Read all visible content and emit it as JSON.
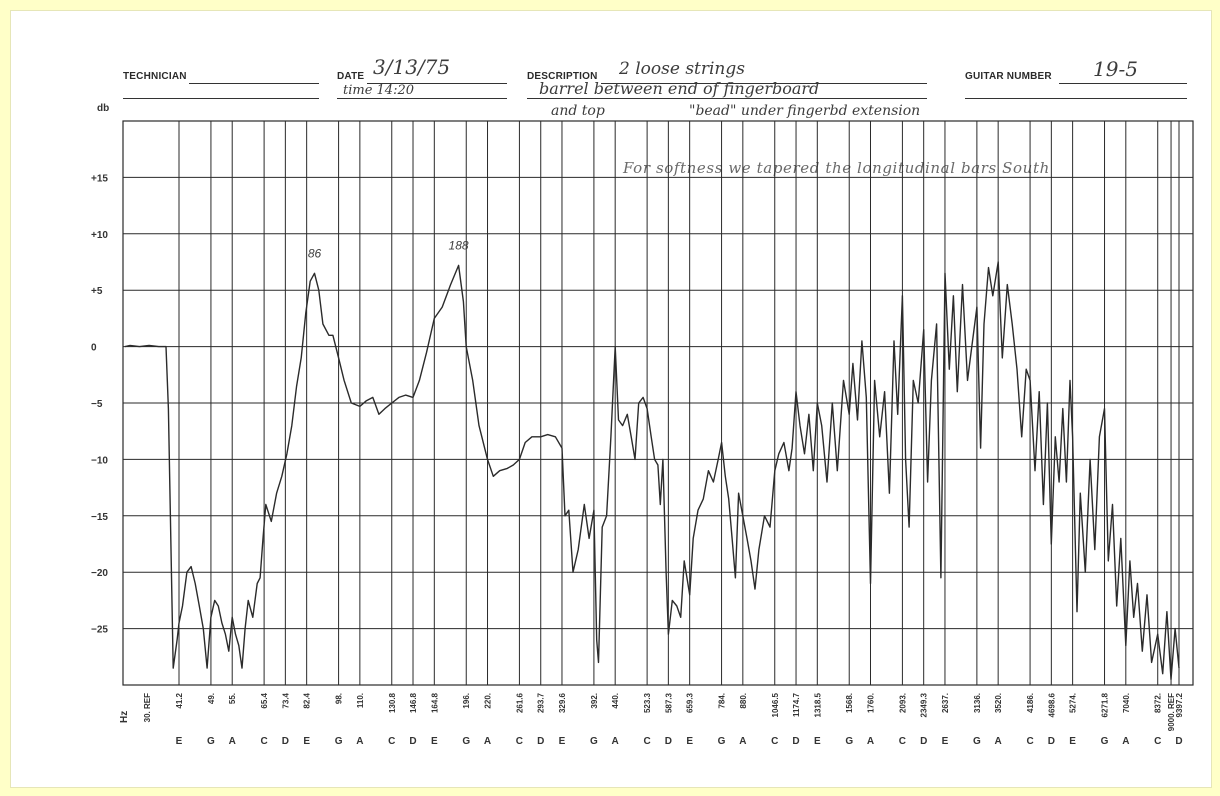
{
  "header": {
    "technician_label": "TECHNICIAN",
    "date_label": "DATE",
    "date_value": "3/13/75",
    "time_value": "time 14:20",
    "description_label": "DESCRIPTION",
    "description_line1": "2 loose strings",
    "description_line2": "barrel between end of fingerboard",
    "description_line3": "and top",
    "description_line3b": "\"bead\" under fingerbd extension",
    "guitar_number_label": "GUITAR NUMBER",
    "guitar_number_value": "19-5"
  },
  "annotation_note": "For softness we tapered the longitudinal bars South",
  "colors": {
    "background": "#ffffc8",
    "grid": "#2a2a2a",
    "trace": "#2b2b2b",
    "handwriting": "#3c3c3c"
  },
  "chart_data": {
    "type": "line",
    "ylabel": "db",
    "xlabel": "Hz",
    "ylim": [
      -30,
      20
    ],
    "y_ticks": [
      15,
      10,
      5,
      0,
      -5,
      -10,
      -15,
      -20,
      -25
    ],
    "y_tick_labels": [
      "+15",
      "+10",
      "+5",
      "0",
      "−5",
      "−10",
      "−15",
      "−20",
      "−25"
    ],
    "x_scale": "log",
    "x_ticks": [
      {
        "hz": 30,
        "freq": "30. REF",
        "note": ""
      },
      {
        "hz": 41.2,
        "freq": "41.2",
        "note": "E"
      },
      {
        "hz": 49,
        "freq": "49.",
        "note": "G"
      },
      {
        "hz": 55,
        "freq": "55.",
        "note": "A"
      },
      {
        "hz": 65.4,
        "freq": "65.4",
        "note": "C"
      },
      {
        "hz": 73.4,
        "freq": "73.4",
        "note": "D"
      },
      {
        "hz": 82.4,
        "freq": "82.4",
        "note": "E"
      },
      {
        "hz": 98,
        "freq": "98.",
        "note": "G"
      },
      {
        "hz": 110,
        "freq": "110.",
        "note": "A"
      },
      {
        "hz": 130.8,
        "freq": "130.8",
        "note": "C"
      },
      {
        "hz": 146.8,
        "freq": "146.8",
        "note": "D"
      },
      {
        "hz": 164.8,
        "freq": "164.8",
        "note": "E"
      },
      {
        "hz": 196,
        "freq": "196.",
        "note": "G"
      },
      {
        "hz": 220,
        "freq": "220.",
        "note": "A"
      },
      {
        "hz": 261.6,
        "freq": "261.6",
        "note": "C"
      },
      {
        "hz": 293.7,
        "freq": "293.7",
        "note": "D"
      },
      {
        "hz": 329.6,
        "freq": "329.6",
        "note": "E"
      },
      {
        "hz": 392,
        "freq": "392.",
        "note": "G"
      },
      {
        "hz": 440,
        "freq": "440.",
        "note": "A"
      },
      {
        "hz": 523.3,
        "freq": "523.3",
        "note": "C"
      },
      {
        "hz": 587.3,
        "freq": "587.3",
        "note": "D"
      },
      {
        "hz": 659.3,
        "freq": "659.3",
        "note": "E"
      },
      {
        "hz": 784,
        "freq": "784.",
        "note": "G"
      },
      {
        "hz": 880,
        "freq": "880.",
        "note": "A"
      },
      {
        "hz": 1046.5,
        "freq": "1046.5",
        "note": "C"
      },
      {
        "hz": 1174.7,
        "freq": "1174.7",
        "note": "D"
      },
      {
        "hz": 1318.5,
        "freq": "1318.5",
        "note": "E"
      },
      {
        "hz": 1568,
        "freq": "1568.",
        "note": "G"
      },
      {
        "hz": 1760,
        "freq": "1760.",
        "note": "A"
      },
      {
        "hz": 2093,
        "freq": "2093.",
        "note": "C"
      },
      {
        "hz": 2349.3,
        "freq": "2349.3",
        "note": "D"
      },
      {
        "hz": 2637,
        "freq": "2637.",
        "note": "E"
      },
      {
        "hz": 3136,
        "freq": "3136.",
        "note": "G"
      },
      {
        "hz": 3520,
        "freq": "3520.",
        "note": "A"
      },
      {
        "hz": 4186,
        "freq": "4186.",
        "note": "C"
      },
      {
        "hz": 4698.6,
        "freq": "4698.6",
        "note": "D"
      },
      {
        "hz": 5274,
        "freq": "5274.",
        "note": "E"
      },
      {
        "hz": 6271.8,
        "freq": "6271.8",
        "note": "G"
      },
      {
        "hz": 7040,
        "freq": "7040.",
        "note": "A"
      },
      {
        "hz": 8372,
        "freq": "8372.",
        "note": "C"
      },
      {
        "hz": 9000,
        "freq": "9000. REF",
        "note": ""
      },
      {
        "hz": 9397.2,
        "freq": "9397.2",
        "note": "D"
      }
    ],
    "peak_labels": [
      {
        "hz": 86,
        "db": 6.5,
        "text": "86"
      },
      {
        "hz": 188,
        "db": 7.2,
        "text": "188"
      }
    ],
    "series": [
      {
        "points": [
          [
            30,
            0
          ],
          [
            31,
            0.1
          ],
          [
            33,
            0
          ],
          [
            35,
            0.1
          ],
          [
            37,
            0
          ],
          [
            38.5,
            0
          ],
          [
            39,
            -5.5
          ],
          [
            40,
            -28.5
          ],
          [
            40.8,
            -26
          ],
          [
            41.2,
            -24.5
          ],
          [
            42,
            -23
          ],
          [
            43,
            -20
          ],
          [
            44,
            -19.5
          ],
          [
            45,
            -21
          ],
          [
            46,
            -23
          ],
          [
            47,
            -25
          ],
          [
            48,
            -28.5
          ],
          [
            49,
            -24
          ],
          [
            50,
            -22.5
          ],
          [
            51,
            -23
          ],
          [
            52,
            -24.5
          ],
          [
            53,
            -25.5
          ],
          [
            54,
            -27
          ],
          [
            55,
            -24
          ],
          [
            56,
            -25.5
          ],
          [
            57,
            -26.5
          ],
          [
            58,
            -28.5
          ],
          [
            59,
            -25
          ],
          [
            60,
            -22.5
          ],
          [
            61.5,
            -24
          ],
          [
            63,
            -21
          ],
          [
            64,
            -20.5
          ],
          [
            65,
            -17
          ],
          [
            66,
            -14
          ],
          [
            68,
            -15.5
          ],
          [
            70,
            -13
          ],
          [
            72,
            -11.5
          ],
          [
            74,
            -9.5
          ],
          [
            76,
            -7
          ],
          [
            78,
            -3.5
          ],
          [
            80,
            -1
          ],
          [
            82,
            3
          ],
          [
            84,
            5.8
          ],
          [
            86,
            6.5
          ],
          [
            88,
            5
          ],
          [
            90,
            2
          ],
          [
            93,
            1
          ],
          [
            95,
            1
          ],
          [
            98,
            -1
          ],
          [
            101,
            -3
          ],
          [
            105,
            -5
          ],
          [
            110,
            -5.3
          ],
          [
            114,
            -4.8
          ],
          [
            118,
            -4.5
          ],
          [
            122,
            -6
          ],
          [
            126,
            -5.5
          ],
          [
            130.8,
            -5
          ],
          [
            136,
            -4.5
          ],
          [
            141,
            -4.3
          ],
          [
            146.8,
            -4.5
          ],
          [
            152,
            -3
          ],
          [
            158,
            -0.5
          ],
          [
            164.8,
            2.5
          ],
          [
            172,
            3.5
          ],
          [
            180,
            5.5
          ],
          [
            188,
            7.2
          ],
          [
            193,
            4
          ],
          [
            196,
            0
          ],
          [
            203,
            -3
          ],
          [
            210,
            -7
          ],
          [
            220,
            -10
          ],
          [
            227,
            -11.5
          ],
          [
            235,
            -11
          ],
          [
            245,
            -10.8
          ],
          [
            253,
            -10.5
          ],
          [
            261.6,
            -10
          ],
          [
            270,
            -8.5
          ],
          [
            280,
            -8
          ],
          [
            293.7,
            -8
          ],
          [
            305,
            -7.8
          ],
          [
            318,
            -8
          ],
          [
            329.6,
            -9
          ],
          [
            335,
            -15
          ],
          [
            342,
            -14.5
          ],
          [
            350,
            -20
          ],
          [
            360,
            -18
          ],
          [
            372,
            -14
          ],
          [
            382,
            -17
          ],
          [
            392,
            -14.5
          ],
          [
            398,
            -26
          ],
          [
            402,
            -28
          ],
          [
            410,
            -16
          ],
          [
            420,
            -15
          ],
          [
            430,
            -8
          ],
          [
            440,
            0
          ],
          [
            448,
            -6.5
          ],
          [
            458,
            -7
          ],
          [
            470,
            -6
          ],
          [
            480,
            -8
          ],
          [
            490,
            -10
          ],
          [
            500,
            -5
          ],
          [
            512,
            -4.5
          ],
          [
            523.3,
            -5.5
          ],
          [
            535,
            -8
          ],
          [
            545,
            -10
          ],
          [
            555,
            -10.5
          ],
          [
            562,
            -14
          ],
          [
            570,
            -10
          ],
          [
            580,
            -20
          ],
          [
            587.3,
            -25.5
          ],
          [
            600,
            -22.5
          ],
          [
            615,
            -23
          ],
          [
            628,
            -24
          ],
          [
            640,
            -19
          ],
          [
            659.3,
            -22
          ],
          [
            672,
            -17
          ],
          [
            690,
            -14.5
          ],
          [
            710,
            -13.5
          ],
          [
            730,
            -11
          ],
          [
            750,
            -12
          ],
          [
            770,
            -10
          ],
          [
            784,
            -8.5
          ],
          [
            800,
            -11.5
          ],
          [
            815,
            -13.5
          ],
          [
            830,
            -17
          ],
          [
            845,
            -20.5
          ],
          [
            860,
            -13
          ],
          [
            880,
            -15
          ],
          [
            900,
            -17
          ],
          [
            920,
            -19
          ],
          [
            940,
            -21.5
          ],
          [
            960,
            -18
          ],
          [
            990,
            -15
          ],
          [
            1020,
            -16
          ],
          [
            1046.5,
            -11
          ],
          [
            1070,
            -9.5
          ],
          [
            1100,
            -8.5
          ],
          [
            1130,
            -11
          ],
          [
            1150,
            -9
          ],
          [
            1174.7,
            -4
          ],
          [
            1200,
            -7
          ],
          [
            1230,
            -9.5
          ],
          [
            1260,
            -6
          ],
          [
            1290,
            -11
          ],
          [
            1318.5,
            -5
          ],
          [
            1350,
            -7
          ],
          [
            1390,
            -12
          ],
          [
            1430,
            -5
          ],
          [
            1470,
            -11
          ],
          [
            1520,
            -3
          ],
          [
            1568,
            -6
          ],
          [
            1600,
            -1.5
          ],
          [
            1640,
            -6.5
          ],
          [
            1680,
            0.5
          ],
          [
            1720,
            -4.5
          ],
          [
            1760,
            -21
          ],
          [
            1800,
            -3
          ],
          [
            1850,
            -8
          ],
          [
            1900,
            -4
          ],
          [
            1950,
            -13
          ],
          [
            2000,
            0.5
          ],
          [
            2040,
            -6
          ],
          [
            2093,
            4.5
          ],
          [
            2130,
            -10
          ],
          [
            2170,
            -16
          ],
          [
            2220,
            -3
          ],
          [
            2280,
            -5
          ],
          [
            2349.3,
            1.5
          ],
          [
            2400,
            -12
          ],
          [
            2450,
            -3
          ],
          [
            2520,
            2
          ],
          [
            2580,
            -20.5
          ],
          [
            2637,
            6.5
          ],
          [
            2700,
            -2
          ],
          [
            2760,
            4.5
          ],
          [
            2820,
            -4
          ],
          [
            2900,
            5.5
          ],
          [
            2980,
            -3
          ],
          [
            3050,
            0
          ],
          [
            3136,
            3.5
          ],
          [
            3200,
            -9
          ],
          [
            3260,
            2
          ],
          [
            3340,
            7
          ],
          [
            3420,
            4.5
          ],
          [
            3520,
            7.5
          ],
          [
            3600,
            -1
          ],
          [
            3700,
            5.5
          ],
          [
            3800,
            2
          ],
          [
            3900,
            -2
          ],
          [
            4000,
            -8
          ],
          [
            4100,
            -2
          ],
          [
            4186,
            -3
          ],
          [
            4300,
            -11
          ],
          [
            4400,
            -4
          ],
          [
            4500,
            -14
          ],
          [
            4600,
            -5
          ],
          [
            4698.6,
            -17.5
          ],
          [
            4800,
            -8
          ],
          [
            4900,
            -12
          ],
          [
            5000,
            -5.5
          ],
          [
            5100,
            -12
          ],
          [
            5200,
            -3
          ],
          [
            5274,
            -8
          ],
          [
            5400,
            -23.5
          ],
          [
            5500,
            -13
          ],
          [
            5650,
            -20
          ],
          [
            5800,
            -10
          ],
          [
            5950,
            -18
          ],
          [
            6100,
            -8
          ],
          [
            6271.8,
            -5.5
          ],
          [
            6400,
            -19
          ],
          [
            6550,
            -14
          ],
          [
            6700,
            -23
          ],
          [
            6850,
            -17
          ],
          [
            7040,
            -26.5
          ],
          [
            7200,
            -19
          ],
          [
            7350,
            -24
          ],
          [
            7500,
            -21
          ],
          [
            7700,
            -27
          ],
          [
            7900,
            -22
          ],
          [
            8100,
            -28
          ],
          [
            8372,
            -25.5
          ],
          [
            8600,
            -29
          ],
          [
            8800,
            -23.5
          ],
          [
            9000,
            -29.5
          ],
          [
            9200,
            -25
          ],
          [
            9397.2,
            -28.5
          ]
        ]
      }
    ]
  }
}
